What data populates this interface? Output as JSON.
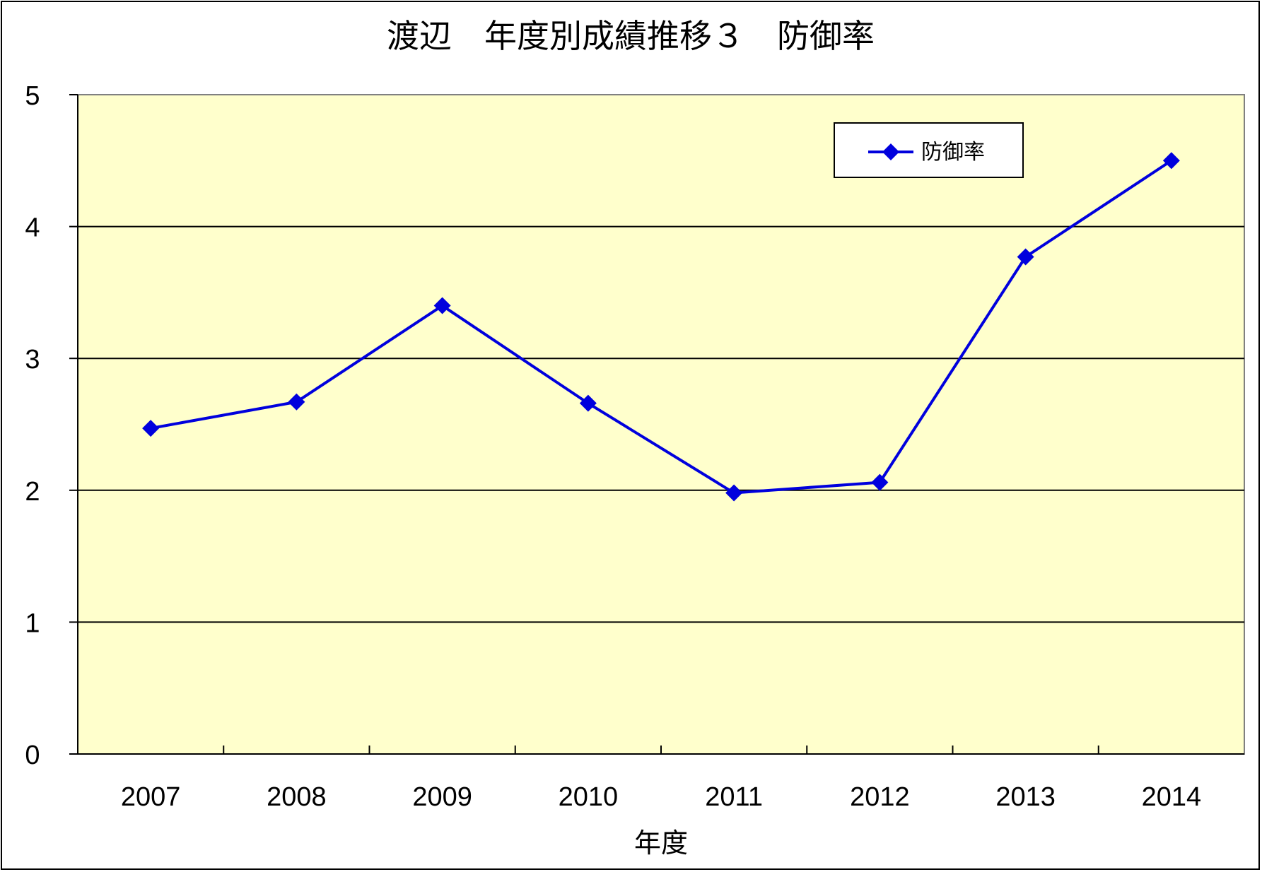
{
  "chart_data": {
    "type": "line",
    "title": "渡辺　年度別成績推移３　防御率",
    "xlabel": "年度",
    "ylabel": "",
    "categories": [
      "2007",
      "2008",
      "2009",
      "2010",
      "2011",
      "2012",
      "2013",
      "2014"
    ],
    "series": [
      {
        "name": "防御率",
        "values": [
          2.47,
          2.67,
          3.4,
          2.66,
          1.98,
          2.06,
          3.77,
          4.5
        ],
        "color": "#0000dd",
        "marker": "diamond"
      }
    ],
    "ylim": [
      0,
      5
    ],
    "yticks": [
      "0",
      "1",
      "2",
      "3",
      "4",
      "5"
    ],
    "grid": true,
    "plot_background": "#ffffcc",
    "legend_position": "top-right"
  }
}
